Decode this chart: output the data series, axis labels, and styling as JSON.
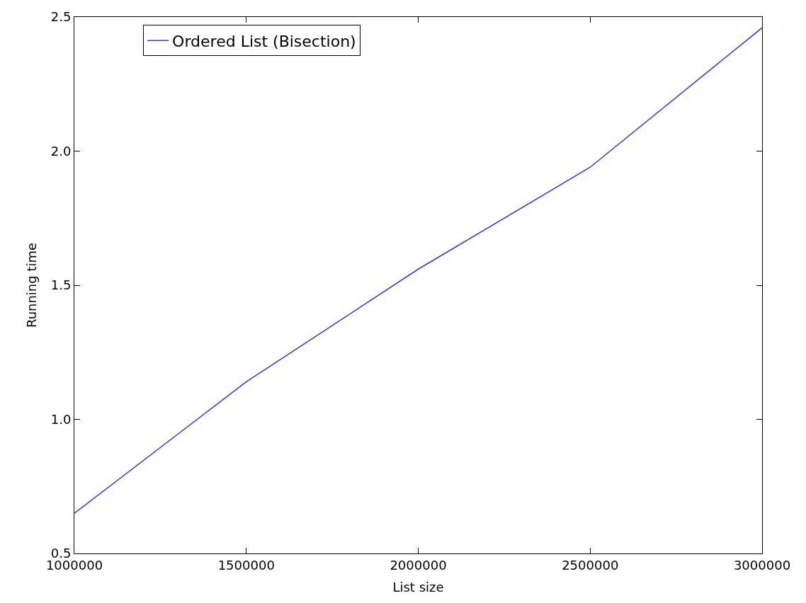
{
  "chart_data": {
    "type": "line",
    "xlabel": "List size",
    "ylabel": "Running time",
    "x": [
      1000000,
      1500000,
      2000000,
      2500000,
      3000000
    ],
    "series": [
      {
        "name": "Ordered List (Bisection)",
        "color": "#3333ff",
        "values": [
          0.65,
          1.14,
          1.56,
          1.94,
          2.46
        ]
      }
    ],
    "xlim": [
      1000000,
      3000000
    ],
    "xticks": [
      1000000,
      1500000,
      2000000,
      2500000,
      3000000
    ],
    "ylim": [
      0.5,
      2.5
    ],
    "yticks": [
      0.5,
      {
        "value": 1,
        "label": "1.0"
      },
      1.5,
      {
        "value": 2,
        "label": "2.0"
      },
      2.5
    ],
    "legend": "top left",
    "marker": "none",
    "line_style": "solid"
  }
}
